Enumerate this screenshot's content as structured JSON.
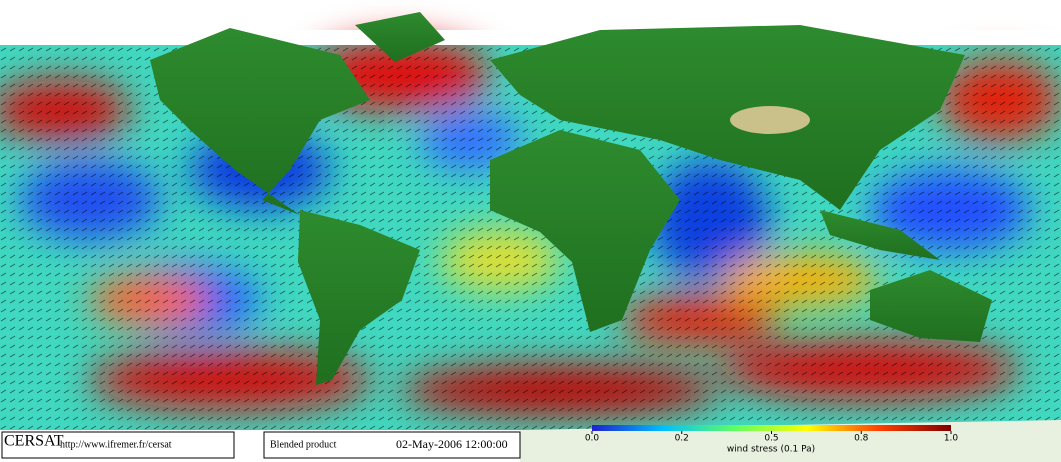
{
  "footer": {
    "logo": "CERSAT",
    "url": "http://www.ifremer.fr/cersat",
    "product": "Blended product",
    "date": "02-May-2006 12:00:00"
  },
  "colorbar": {
    "label": "wind stress (0.1 Pa)",
    "ticks": [
      {
        "value": 0,
        "label": "0.0"
      },
      0.2,
      0.5,
      0.8,
      {
        "value": 1,
        "label": "1.0"
      }
    ]
  }
}
